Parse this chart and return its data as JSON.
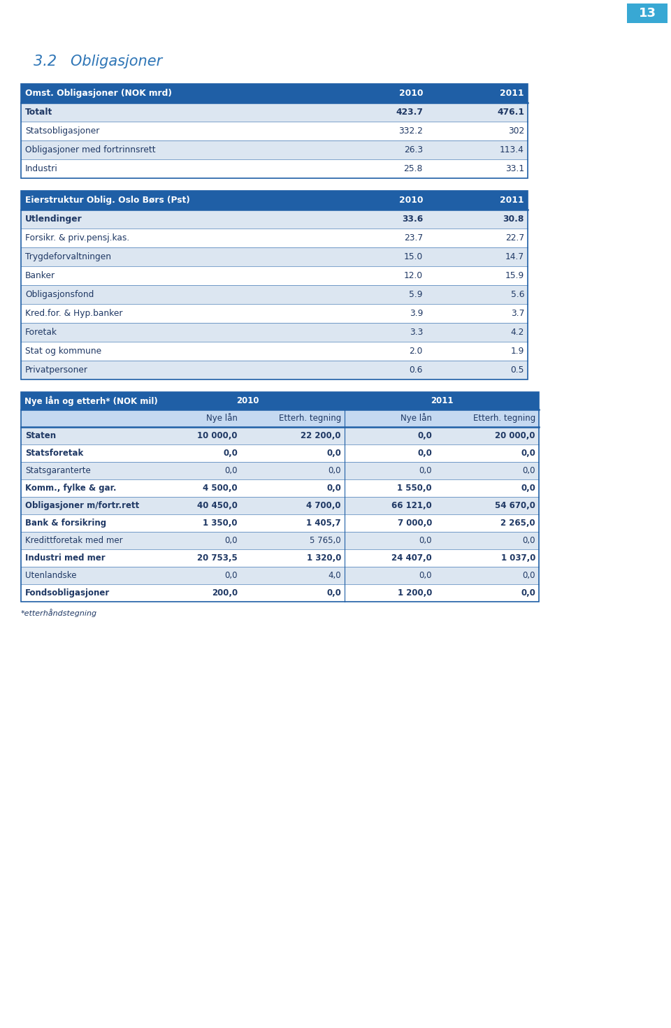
{
  "page_number": "13",
  "page_bg": "#ffffff",
  "header_color": "#38a8d4",
  "section_title": "3.2   Obligasjoner",
  "section_title_color": "#2e75b6",
  "table1_header": [
    "Omst. Obligasjoner (NOK mrd)",
    "2010",
    "2011"
  ],
  "table1_rows": [
    [
      "Totalt",
      "423.7",
      "476.1"
    ],
    [
      "Statsobligasjoner",
      "332.2",
      "302"
    ],
    [
      "Obligasjoner med fortrinnsrett",
      "26.3",
      "113.4"
    ],
    [
      "Industri",
      "25.8",
      "33.1"
    ]
  ],
  "table2_header": [
    "Eierstruktur Oblig. Oslo Børs (Pst)",
    "2010",
    "2011"
  ],
  "table2_rows": [
    [
      "Utlendinger",
      "33.6",
      "30.8"
    ],
    [
      "Forsikr. & priv.pensj.kas.",
      "23.7",
      "22.7"
    ],
    [
      "Trygdeforvaltningen",
      "15.0",
      "14.7"
    ],
    [
      "Banker",
      "12.0",
      "15.9"
    ],
    [
      "Obligasjonsfond",
      "5.9",
      "5.6"
    ],
    [
      "Kred.for. & Hyp.banker",
      "3.9",
      "3.7"
    ],
    [
      "Foretak",
      "3.3",
      "4.2"
    ],
    [
      "Stat og kommune",
      "2.0",
      "1.9"
    ],
    [
      "Privatpersoner",
      "0.6",
      "0.5"
    ]
  ],
  "table3_rows": [
    [
      "Staten",
      "10 000,0",
      "22 200,0",
      "0,0",
      "20 000,0"
    ],
    [
      "Statsforetak",
      "0,0",
      "0,0",
      "0,0",
      "0,0"
    ],
    [
      "Statsgaranterte",
      "0,0",
      "0,0",
      "0,0",
      "0,0"
    ],
    [
      "Komm., fylke & gar.",
      "4 500,0",
      "0,0",
      "1 550,0",
      "0,0"
    ],
    [
      "Obligasjoner m/fortr.rett",
      "40 450,0",
      "4 700,0",
      "66 121,0",
      "54 670,0"
    ],
    [
      "Bank & forsikring",
      "1 350,0",
      "1 405,7",
      "7 000,0",
      "2 265,0"
    ],
    [
      "Kredittforetak med mer",
      "0,0",
      "5 765,0",
      "0,0",
      "0,0"
    ],
    [
      "Industri med mer",
      "20 753,5",
      "1 320,0",
      "24 407,0",
      "1 037,0"
    ],
    [
      "Utenlandske",
      "0,0",
      "4,0",
      "0,0",
      "0,0"
    ],
    [
      "Fondsobligasjoner",
      "200,0",
      "0,0",
      "1 200,0",
      "0,0"
    ]
  ],
  "table3_footnote": "*etterhåndstegning",
  "header_bg": "#1f5fa6",
  "row_bg_light": "#dce6f1",
  "row_bg_white": "#ffffff",
  "header_text_color": "#ffffff",
  "row_text_color": "#1f3864",
  "table_border_color": "#1f5fa6",
  "subheader_bg": "#c5d9f1",
  "subheader_text_color": "#1f3864",
  "t1_bold_data_rows": [
    0
  ],
  "t2_bold_data_rows": [
    0
  ],
  "t3_bold_data_rows": [
    3,
    4,
    5,
    7,
    9
  ]
}
